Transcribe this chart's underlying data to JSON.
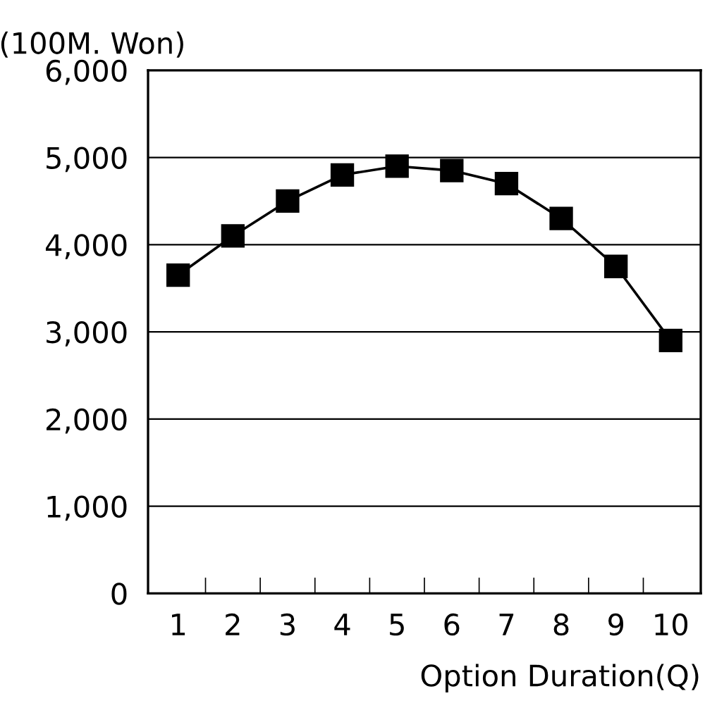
{
  "chart_data": {
    "type": "line",
    "ylabel": "(100M. Won)",
    "xlabel": "Option Duration(Q)",
    "categories": [
      "1",
      "2",
      "3",
      "4",
      "5",
      "6",
      "7",
      "8",
      "9",
      "10"
    ],
    "series": [
      {
        "color": "#000000",
        "values": [
          3650,
          4100,
          4500,
          4800,
          4900,
          4850,
          4700,
          4300,
          3750,
          2900
        ]
      }
    ],
    "ylim": [
      0,
      6000
    ],
    "yticks": [
      {
        "value": 0,
        "label": "0"
      },
      {
        "value": 1000,
        "label": "1,000"
      },
      {
        "value": 2000,
        "label": "2,000"
      },
      {
        "value": 3000,
        "label": "3,000"
      },
      {
        "value": 4000,
        "label": "4,000"
      },
      {
        "value": 5000,
        "label": "5,000"
      },
      {
        "value": 6000,
        "label": "6,000"
      }
    ],
    "grid": "y",
    "marker": "square",
    "line_style": "solid",
    "legend": false
  }
}
